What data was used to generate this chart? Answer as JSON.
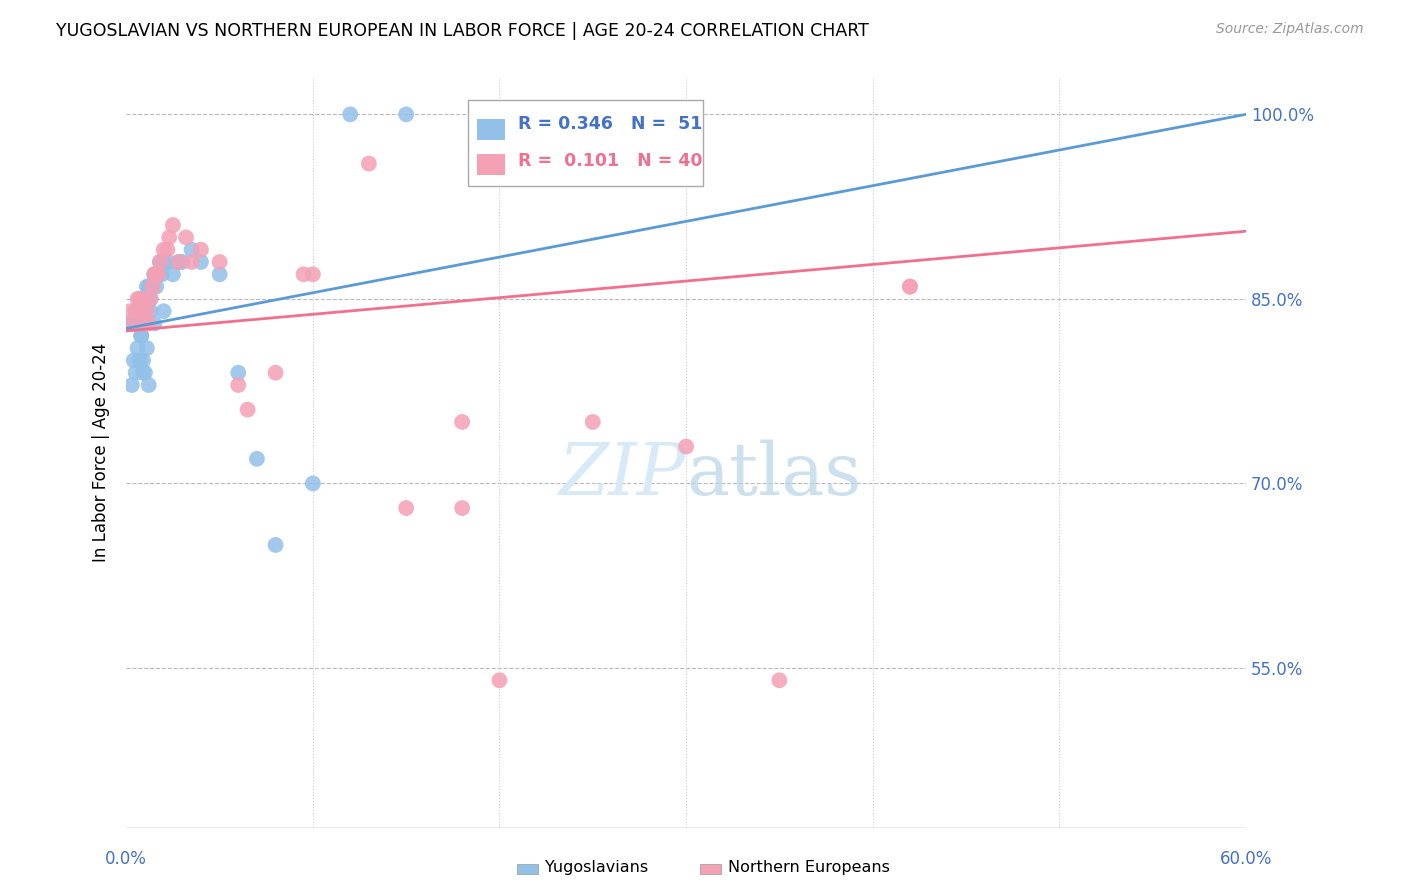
{
  "title": "YUGOSLAVIAN VS NORTHERN EUROPEAN IN LABOR FORCE | AGE 20-24 CORRELATION CHART",
  "source": "Source: ZipAtlas.com",
  "ylabel": "In Labor Force | Age 20-24",
  "ytick_labels": [
    "55.0%",
    "70.0%",
    "85.0%",
    "100.0%"
  ],
  "ytick_vals": [
    0.55,
    0.7,
    0.85,
    1.0
  ],
  "xmin": 0.0,
  "xmax": 0.6,
  "ymin": 0.42,
  "ymax": 1.03,
  "color_yugo": "#92C0E8",
  "color_north": "#F4A0B5",
  "trendline_yugo": "#5B9BD5",
  "trendline_north": "#F07090",
  "watermark_color": "#D8EAF8",
  "yugo_x": [
    0.002,
    0.003,
    0.003,
    0.004,
    0.005,
    0.005,
    0.006,
    0.006,
    0.007,
    0.007,
    0.008,
    0.008,
    0.009,
    0.009,
    0.01,
    0.01,
    0.011,
    0.011,
    0.012,
    0.013,
    0.013,
    0.014,
    0.015,
    0.016,
    0.017,
    0.018,
    0.019,
    0.02,
    0.022,
    0.025,
    0.028,
    0.03,
    0.035,
    0.04,
    0.05,
    0.06,
    0.07,
    0.08,
    0.1,
    0.12,
    0.15,
    0.012,
    0.008,
    0.01,
    0.013,
    0.015,
    0.007,
    0.009,
    0.011,
    0.016,
    0.02
  ],
  "yugo_y": [
    0.83,
    0.83,
    0.78,
    0.8,
    0.84,
    0.79,
    0.83,
    0.81,
    0.84,
    0.83,
    0.84,
    0.82,
    0.84,
    0.8,
    0.85,
    0.84,
    0.86,
    0.85,
    0.86,
    0.86,
    0.85,
    0.86,
    0.87,
    0.87,
    0.87,
    0.88,
    0.87,
    0.88,
    0.88,
    0.87,
    0.88,
    0.88,
    0.89,
    0.88,
    0.87,
    0.79,
    0.72,
    0.65,
    0.7,
    1.0,
    1.0,
    0.78,
    0.82,
    0.79,
    0.84,
    0.83,
    0.8,
    0.79,
    0.81,
    0.86,
    0.84
  ],
  "north_x": [
    0.002,
    0.003,
    0.005,
    0.006,
    0.007,
    0.008,
    0.009,
    0.01,
    0.011,
    0.012,
    0.013,
    0.015,
    0.016,
    0.018,
    0.02,
    0.022,
    0.025,
    0.028,
    0.032,
    0.04,
    0.05,
    0.065,
    0.08,
    0.1,
    0.13,
    0.18,
    0.25,
    0.35,
    0.42,
    0.18,
    0.014,
    0.017,
    0.023,
    0.035,
    0.06,
    0.095,
    0.15,
    0.3,
    0.42,
    0.2
  ],
  "north_y": [
    0.84,
    0.83,
    0.84,
    0.85,
    0.85,
    0.84,
    0.85,
    0.83,
    0.84,
    0.83,
    0.85,
    0.87,
    0.87,
    0.88,
    0.89,
    0.89,
    0.91,
    0.88,
    0.9,
    0.89,
    0.88,
    0.76,
    0.79,
    0.87,
    0.96,
    0.68,
    0.75,
    0.54,
    0.86,
    0.75,
    0.86,
    0.87,
    0.9,
    0.88,
    0.78,
    0.87,
    0.68,
    0.73,
    0.86,
    0.54
  ],
  "trend_yugo_x0": 0.0,
  "trend_yugo_y0": 0.826,
  "trend_yugo_x1": 0.6,
  "trend_yugo_y1": 1.0,
  "trend_north_x0": 0.0,
  "trend_north_y0": 0.824,
  "trend_north_x1": 0.6,
  "trend_north_y1": 0.905
}
